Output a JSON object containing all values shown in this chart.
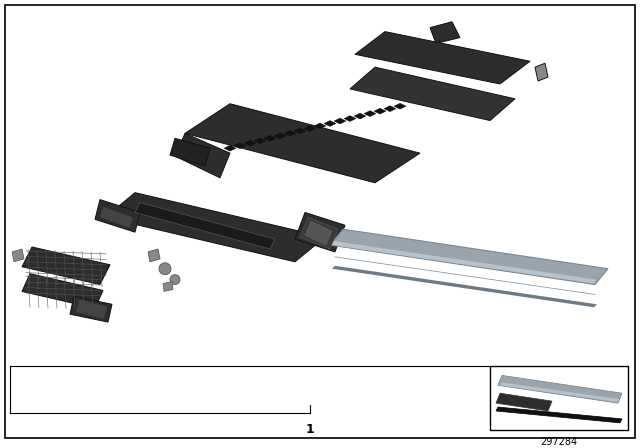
{
  "background_color": "#ffffff",
  "border_color": "#000000",
  "part_number": "297284",
  "label_number": "1",
  "fig_width": 6.4,
  "fig_height": 4.48,
  "dpi": 100,
  "dc": "#2d2d2d",
  "mc": "#3a3a3a",
  "lc": "#555555",
  "gc": "#888888",
  "sc": "#9aa4ac",
  "sc2": "#b8c2ca",
  "sc3": "#6e7a82"
}
